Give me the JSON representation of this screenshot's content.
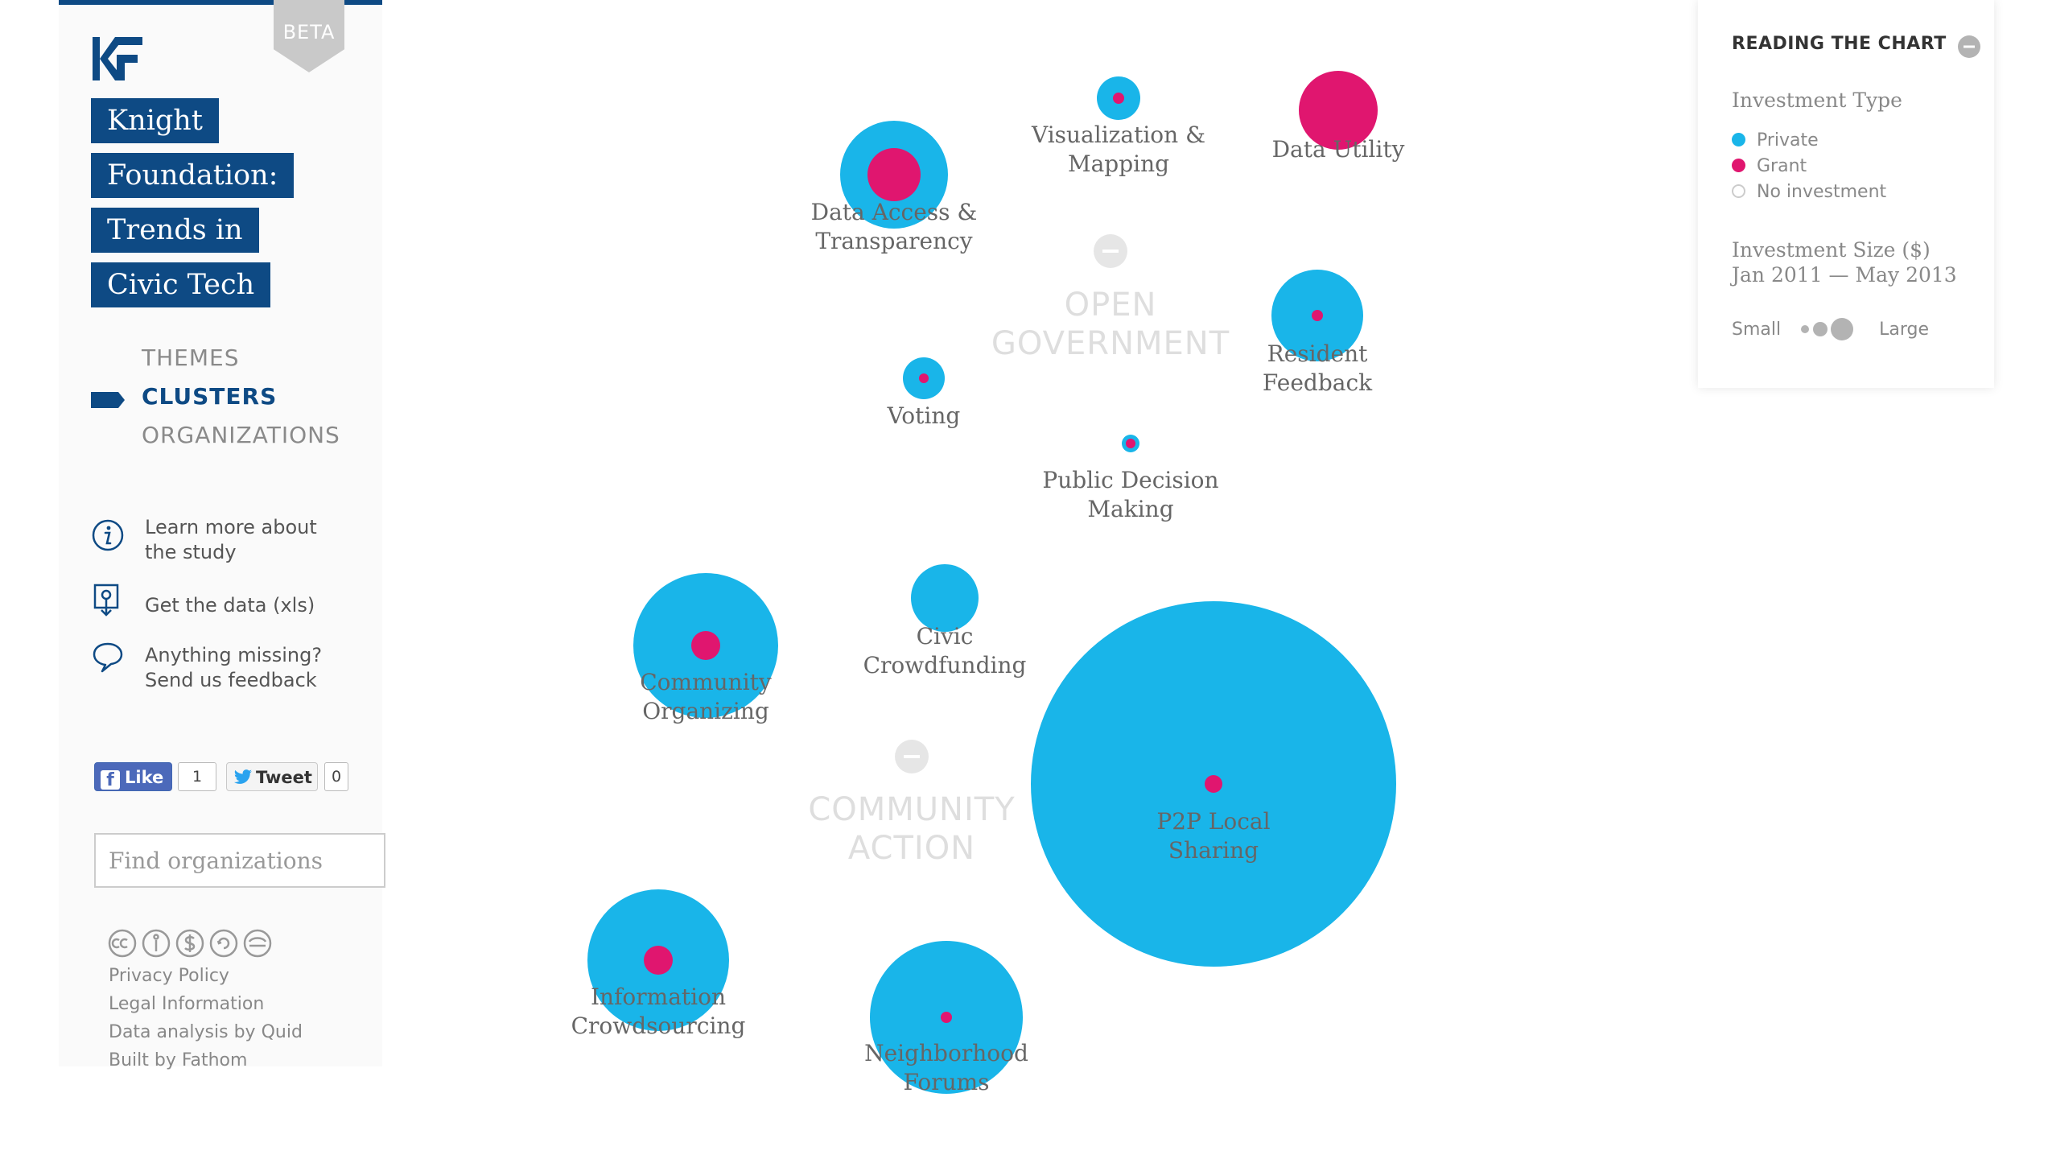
{
  "header": {
    "beta": "BETA",
    "title_lines": [
      "Knight",
      "Foundation:",
      "Trends in",
      "Civic Tech"
    ]
  },
  "nav": {
    "items": [
      {
        "label": "THEMES",
        "active": false
      },
      {
        "label": "CLUSTERS",
        "active": true
      },
      {
        "label": "ORGANIZATIONS",
        "active": false
      }
    ]
  },
  "links": {
    "learn_more": "Learn more about\nthe study",
    "get_data": "Get the data (xls)",
    "feedback": "Anything missing?\nSend us feedback"
  },
  "social": {
    "like_label": "Like",
    "like_count": "1",
    "tweet_label": "Tweet",
    "tweet_count": "0"
  },
  "search": {
    "placeholder": "Find organizations"
  },
  "footer": {
    "links": [
      "Privacy Policy",
      "Legal Information",
      "Data analysis by Quid",
      "Built by Fathom"
    ]
  },
  "legend": {
    "title": "READING THE CHART",
    "investment_type_heading": "Investment Type",
    "types": [
      {
        "label": "Private",
        "color": "#19b5e9"
      },
      {
        "label": "Grant",
        "color": "#e0166f"
      },
      {
        "label": "No investment",
        "color": "none"
      }
    ],
    "size_heading_line1": "Investment Size ($)",
    "size_heading_line2": "Jan 2011 — May 2013",
    "small_label": "Small",
    "large_label": "Large"
  },
  "colors": {
    "private": "#19b5e9",
    "grant": "#e0166f",
    "brand": "#0e4a84",
    "group_label": "#dedede"
  },
  "chart_data": {
    "type": "bubble-cluster",
    "groups": [
      {
        "name": "OPEN GOVERNMENT"
      },
      {
        "name": "COMMUNITY ACTION"
      }
    ],
    "clusters": [
      {
        "name": "Visualization & Mapping",
        "group": "OPEN GOVERNMENT",
        "private_size": "small",
        "grant_size": "tiny"
      },
      {
        "name": "Data Utility",
        "group": "OPEN GOVERNMENT",
        "private_size": "none",
        "grant_size": "medium"
      },
      {
        "name": "Data Access & Transparency",
        "group": "OPEN GOVERNMENT",
        "private_size": "medium",
        "grant_size": "small"
      },
      {
        "name": "Resident Feedback",
        "group": "OPEN GOVERNMENT",
        "private_size": "medium",
        "grant_size": "tiny"
      },
      {
        "name": "Voting",
        "group": "OPEN GOVERNMENT",
        "private_size": "small",
        "grant_size": "tiny"
      },
      {
        "name": "Public Decision Making",
        "group": "OPEN GOVERNMENT",
        "private_size": "tiny",
        "grant_size": "tiny"
      },
      {
        "name": "Community Organizing",
        "group": "COMMUNITY ACTION",
        "private_size": "medium",
        "grant_size": "small"
      },
      {
        "name": "Civic Crowdfunding",
        "group": "COMMUNITY ACTION",
        "private_size": "small",
        "grant_size": "none"
      },
      {
        "name": "P2P Local Sharing",
        "group": "COMMUNITY ACTION",
        "private_size": "very large",
        "grant_size": "tiny"
      },
      {
        "name": "Information Crowdsourcing",
        "group": "COMMUNITY ACTION",
        "private_size": "medium",
        "grant_size": "small"
      },
      {
        "name": "Neighborhood Forums",
        "group": "COMMUNITY ACTION",
        "private_size": "medium",
        "grant_size": "tiny"
      }
    ]
  }
}
